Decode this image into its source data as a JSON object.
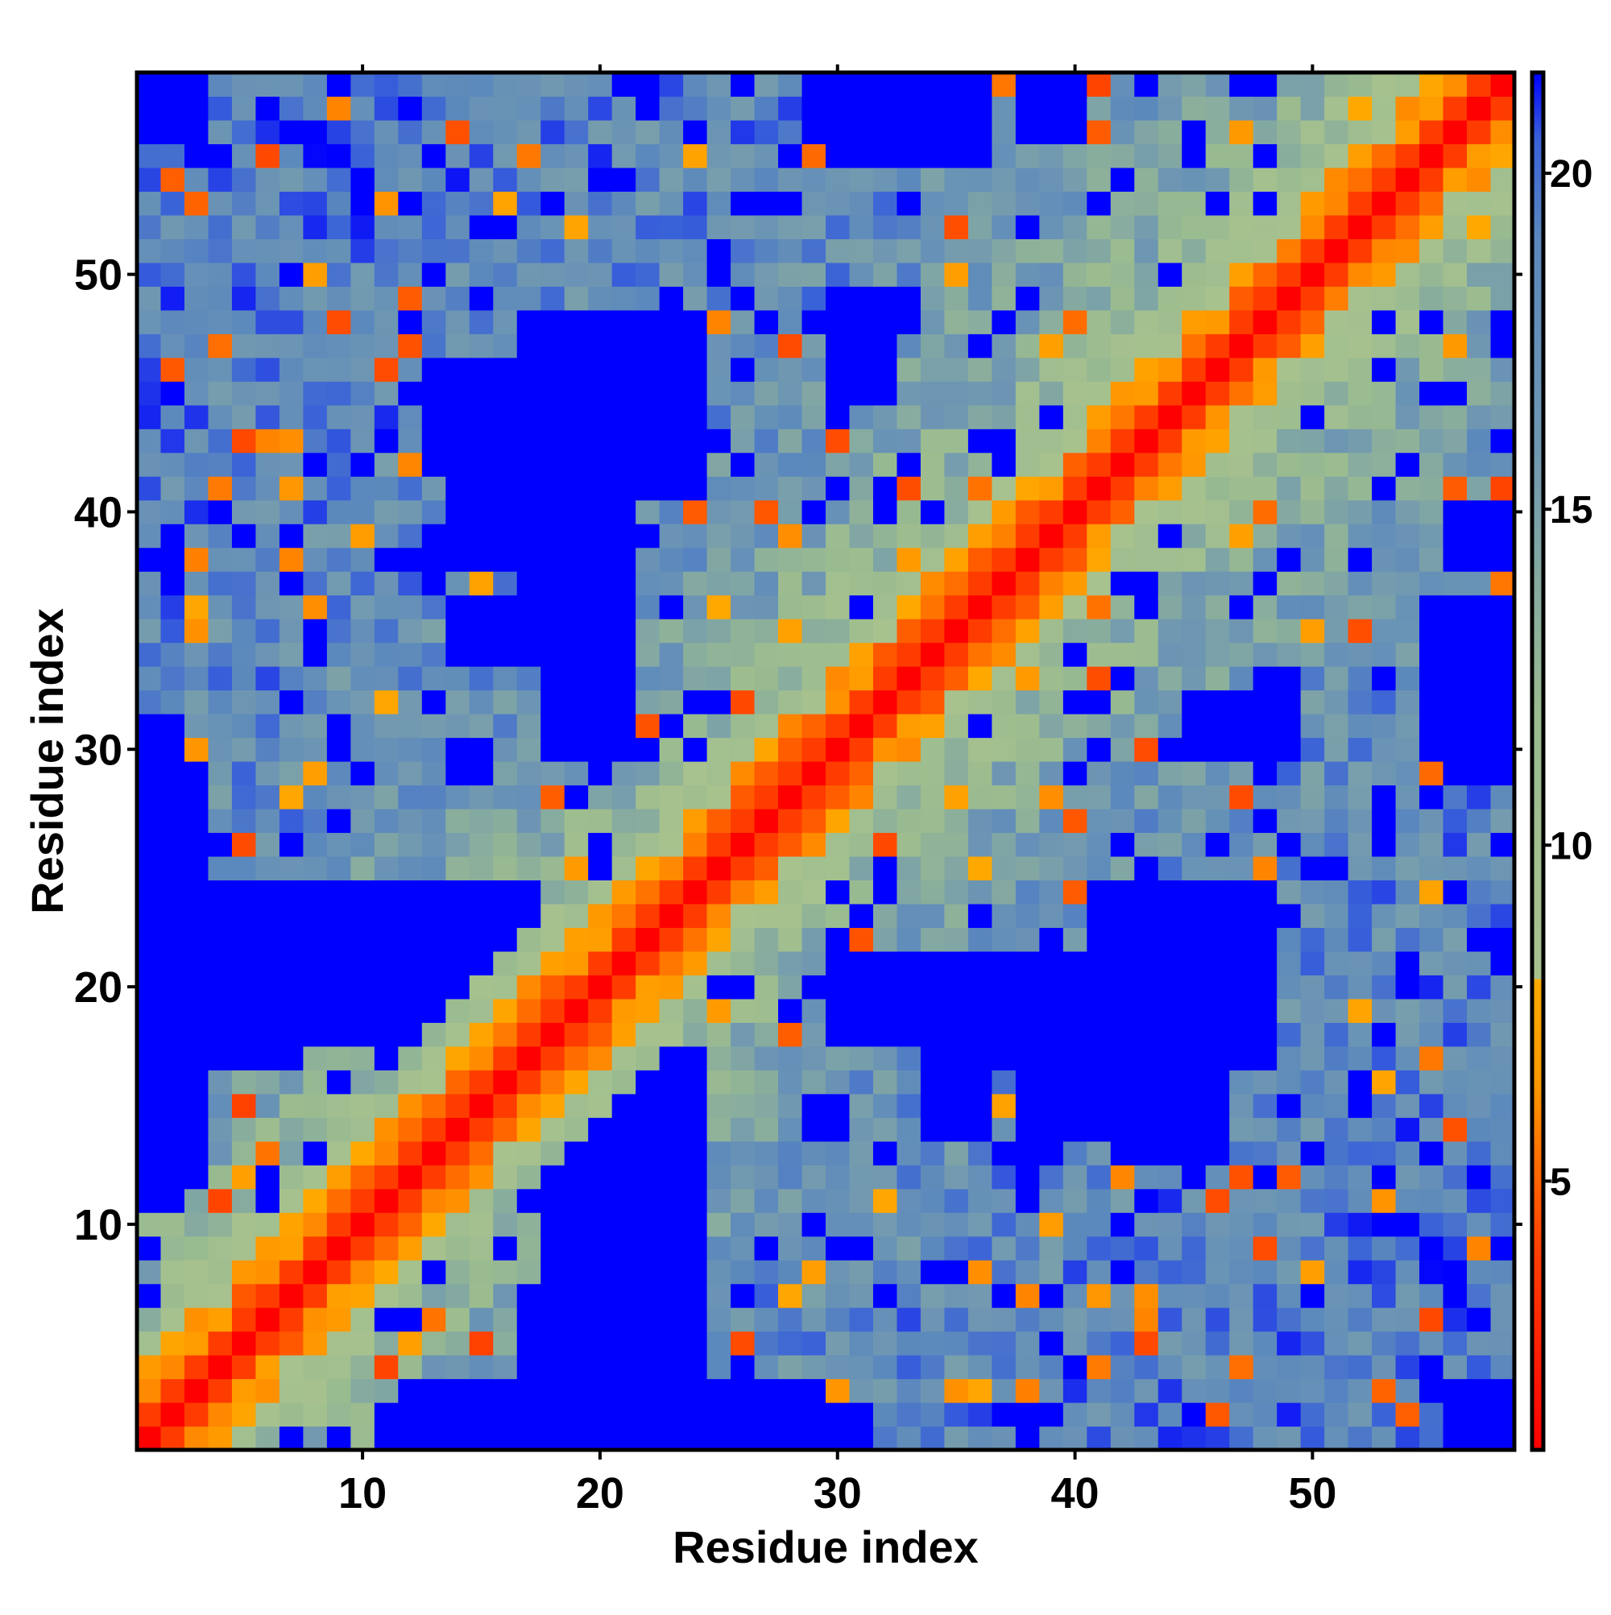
{
  "chart_data": {
    "type": "heatmap",
    "title": "",
    "xlabel": "Residue index",
    "ylabel": "Residue index",
    "n": 58,
    "xlim": [
      0.5,
      58.5
    ],
    "ylim": [
      0.5,
      58.5
    ],
    "x_ticks": [
      10,
      20,
      30,
      40,
      50
    ],
    "y_ticks": [
      10,
      20,
      30,
      40,
      50
    ],
    "x_tick_labels": [
      "10",
      "20",
      "30",
      "40",
      "50"
    ],
    "y_tick_labels": [
      "10",
      "20",
      "30",
      "40",
      "50"
    ],
    "colorbar": {
      "range": [
        1.0,
        21.5
      ],
      "ticks": [
        5,
        10,
        15,
        20
      ],
      "tick_labels": [
        "5",
        "10",
        "15",
        "20"
      ],
      "position": "right",
      "stops": [
        {
          "value": 1.0,
          "color": "#ff0000"
        },
        {
          "value": 4.0,
          "color": "#ff4000"
        },
        {
          "value": 6.5,
          "color": "#ff9900"
        },
        {
          "value": 8.0,
          "color": "#ffaa00"
        },
        {
          "value": 8.01,
          "color": "#a8c28e"
        },
        {
          "value": 12.0,
          "color": "#9abb90"
        },
        {
          "value": 16.0,
          "color": "#6f97b2"
        },
        {
          "value": 19.0,
          "color": "#5b88bd"
        },
        {
          "value": 20.5,
          "color": "#3a62d8"
        },
        {
          "value": 21.5,
          "color": "#0000ff"
        }
      ]
    },
    "symmetric": true,
    "diagonal_profile": [
      {
        "offset": 0,
        "value": 1.0
      },
      {
        "offset": 1,
        "value": 3.8
      },
      {
        "offset": 2,
        "value": 5.8
      },
      {
        "offset": 3,
        "value": 7.2
      },
      {
        "offset": 4,
        "value": 9.5
      },
      {
        "offset": 6,
        "value": 12.0
      },
      {
        "offset": 10,
        "value": 15.0
      },
      {
        "offset": 18,
        "value": 17.5
      },
      {
        "offset": 57,
        "value": 19.0
      }
    ],
    "far_blocks": [
      {
        "rows": [
          1,
          17
        ],
        "cols": [
          18,
          24
        ],
        "value": 21.5
      },
      {
        "rows": [
          1,
          3
        ],
        "cols": [
          12,
          29
        ],
        "value": 21.5
      },
      {
        "rows": [
          18,
          21
        ],
        "cols": [
          1,
          8
        ],
        "value": 21.5
      },
      {
        "rows": [
          17,
          24
        ],
        "cols": [
          41,
          48
        ],
        "value": 21.5
      },
      {
        "rows": [
          18,
          21
        ],
        "cols": [
          30,
          40
        ],
        "value": 21.5
      },
      {
        "rows": [
          28,
          31
        ],
        "cols": [
          1,
          2
        ],
        "value": 21.5
      },
      {
        "rows": [
          22,
          24
        ],
        "cols": [
          1,
          3
        ],
        "value": 21.5
      },
      {
        "rows": [
          29,
          36
        ],
        "cols": [
          56,
          58
        ],
        "value": 21.5
      },
      {
        "rows": [
          38,
          40
        ],
        "cols": [
          56,
          58
        ],
        "value": 21.5
      },
      {
        "rows": [
          41,
          44
        ],
        "cols": [
          14,
          21
        ],
        "value": 21.5
      },
      {
        "rows": [
          38,
          40
        ],
        "cols": [
          14,
          19
        ],
        "value": 21.5
      },
      {
        "rows": [
          34,
          36
        ],
        "cols": [
          14,
          20
        ],
        "value": 21.5
      },
      {
        "rows": [
          55,
          58
        ],
        "cols": [
          30,
          36
        ],
        "value": 21.5
      },
      {
        "rows": [
          56,
          58
        ],
        "cols": [
          1,
          3
        ],
        "value": 21.5
      },
      {
        "rows": [
          45,
          48
        ],
        "cols": [
          30,
          32
        ],
        "value": 21.5
      },
      {
        "rows": [
          1,
          3
        ],
        "cols": [
          56,
          58
        ],
        "value": 21.5
      },
      {
        "rows": [
          2,
          7
        ],
        "cols": [
          17,
          20
        ],
        "value": 21.5
      },
      {
        "rows": [
          13,
          16
        ],
        "cols": [
          42,
          46
        ],
        "value": 21.5
      },
      {
        "rows": [
          30,
          33
        ],
        "cols": [
          48,
          49
        ],
        "value": 21.5
      }
    ],
    "seed": 7
  }
}
